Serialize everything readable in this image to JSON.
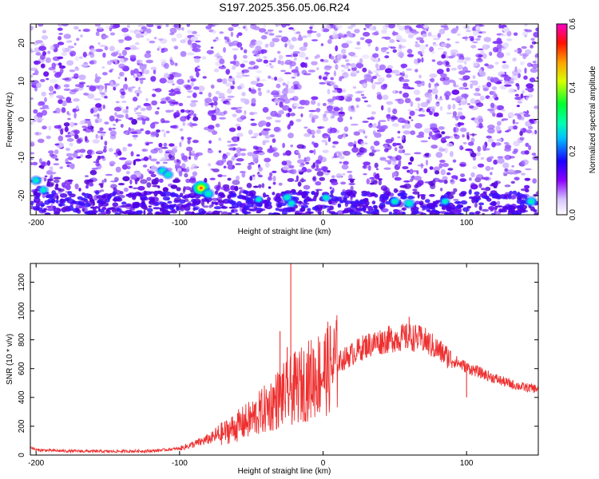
{
  "title": "S197.2025.356.05.06.R24",
  "chart_data": [
    {
      "type": "heatmap",
      "xlabel": "Height of straight line (km)",
      "ylabel": "Frequency (Hz)",
      "xlim": [
        -204,
        150
      ],
      "ylim": [
        -25,
        25
      ],
      "x_ticks": [
        -200,
        -100,
        0,
        100
      ],
      "y_ticks": [
        -20,
        -10,
        0,
        10,
        20
      ],
      "colorbar": {
        "label": "Normalized spectral amplitude",
        "range": [
          0,
          0.6
        ],
        "ticks": [
          "0.0",
          "0.2",
          "0.4",
          "0.6"
        ],
        "colors": [
          "#ffffff",
          "#7a00ff",
          "#0000ff",
          "#00e5ff",
          "#00ff40",
          "#ffff00",
          "#ff0000",
          "#ff00ff"
        ]
      },
      "background_color": "#7b2ff7",
      "hot_spots": [
        {
          "x": -200,
          "y": -16,
          "v": 0.25
        },
        {
          "x": -195,
          "y": -18.5,
          "v": 0.22
        },
        {
          "x": -112,
          "y": -13.5,
          "v": 0.25
        },
        {
          "x": -108,
          "y": -14.5,
          "v": 0.22
        },
        {
          "x": -85,
          "y": -18,
          "v": 0.5
        },
        {
          "x": -80,
          "y": -19.5,
          "v": 0.3
        },
        {
          "x": -45,
          "y": -21,
          "v": 0.15
        },
        {
          "x": -25,
          "y": -20.5,
          "v": 0.25
        },
        {
          "x": -22,
          "y": -22,
          "v": 0.2
        },
        {
          "x": 2,
          "y": -20.5,
          "v": 0.2
        },
        {
          "x": 50,
          "y": -21.5,
          "v": 0.25
        },
        {
          "x": 60,
          "y": -22,
          "v": 0.3
        },
        {
          "x": 85,
          "y": -21.5,
          "v": 0.2
        },
        {
          "x": 145,
          "y": -21.5,
          "v": 0.3
        }
      ]
    },
    {
      "type": "line",
      "xlabel": "Height of straight line (km)",
      "ylabel": "SNR (10 * v/v)",
      "xlim": [
        -204,
        150
      ],
      "ylim": [
        0,
        1330
      ],
      "x_ticks": [
        -200,
        -100,
        0,
        100
      ],
      "y_ticks": [
        0,
        200,
        400,
        600,
        800,
        1000,
        1200
      ],
      "line_color": "#ee3030",
      "envelope": [
        {
          "x": -204,
          "y": 55
        },
        {
          "x": -200,
          "y": 35
        },
        {
          "x": -180,
          "y": 28
        },
        {
          "x": -150,
          "y": 25
        },
        {
          "x": -120,
          "y": 28
        },
        {
          "x": -100,
          "y": 45
        },
        {
          "x": -90,
          "y": 75
        },
        {
          "x": -80,
          "y": 110
        },
        {
          "x": -70,
          "y": 150
        },
        {
          "x": -60,
          "y": 200
        },
        {
          "x": -50,
          "y": 250
        },
        {
          "x": -40,
          "y": 320
        },
        {
          "x": -30,
          "y": 400
        },
        {
          "x": -20,
          "y": 460
        },
        {
          "x": -10,
          "y": 520
        },
        {
          "x": 0,
          "y": 580
        },
        {
          "x": 10,
          "y": 640
        },
        {
          "x": 20,
          "y": 700
        },
        {
          "x": 30,
          "y": 760
        },
        {
          "x": 40,
          "y": 790
        },
        {
          "x": 50,
          "y": 810
        },
        {
          "x": 60,
          "y": 820
        },
        {
          "x": 70,
          "y": 800
        },
        {
          "x": 80,
          "y": 730
        },
        {
          "x": 90,
          "y": 660
        },
        {
          "x": 100,
          "y": 610
        },
        {
          "x": 110,
          "y": 570
        },
        {
          "x": 120,
          "y": 530
        },
        {
          "x": 130,
          "y": 495
        },
        {
          "x": 140,
          "y": 470
        },
        {
          "x": 150,
          "y": 460
        }
      ],
      "spikes": [
        {
          "x": -22.5,
          "y": 1330
        },
        {
          "x": -25,
          "y": 750
        },
        {
          "x": -30,
          "y": 860
        },
        {
          "x": 60,
          "y": 960
        },
        {
          "x": 100,
          "y": 400
        }
      ]
    }
  ]
}
